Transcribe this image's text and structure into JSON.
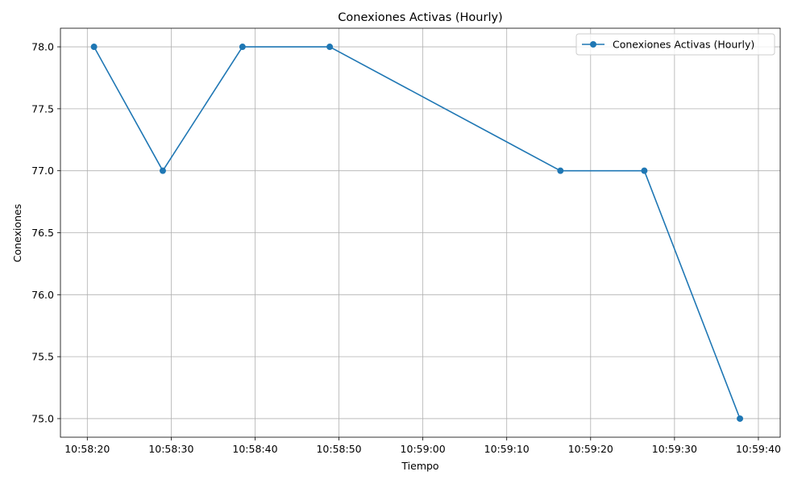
{
  "chart_data": {
    "type": "line",
    "title": "Conexiones Activas (Hourly)",
    "xlabel": "Tiempo",
    "ylabel": "Conexiones",
    "x_ticks": [
      "10:58:20",
      "10:58:30",
      "10:58:40",
      "10:58:50",
      "10:59:00",
      "10:59:10",
      "10:59:20",
      "10:59:30",
      "10:59:40"
    ],
    "x_ticks_seconds": [
      20,
      30,
      40,
      50,
      60,
      70,
      80,
      90,
      100
    ],
    "y_ticks": [
      "75.0",
      "75.5",
      "76.0",
      "76.5",
      "77.0",
      "77.5",
      "78.0"
    ],
    "y_tick_values": [
      75.0,
      75.5,
      76.0,
      76.5,
      77.0,
      77.5,
      78.0
    ],
    "xlim_seconds": [
      16.8,
      102.6
    ],
    "ylim": [
      74.85,
      78.15
    ],
    "grid": true,
    "legend_position": "top-right",
    "series": [
      {
        "name": "Conexiones Activas (Hourly)",
        "color": "#1f77b4",
        "x_seconds": [
          20.8,
          29.0,
          38.5,
          48.9,
          76.4,
          86.4,
          97.8
        ],
        "x_labels": [
          "10:58:20.8",
          "10:58:29.0",
          "10:58:38.5",
          "10:58:48.9",
          "10:59:16.4",
          "10:59:26.4",
          "10:59:37.8"
        ],
        "values": [
          78,
          77,
          78,
          78,
          77,
          77,
          75
        ]
      }
    ]
  }
}
